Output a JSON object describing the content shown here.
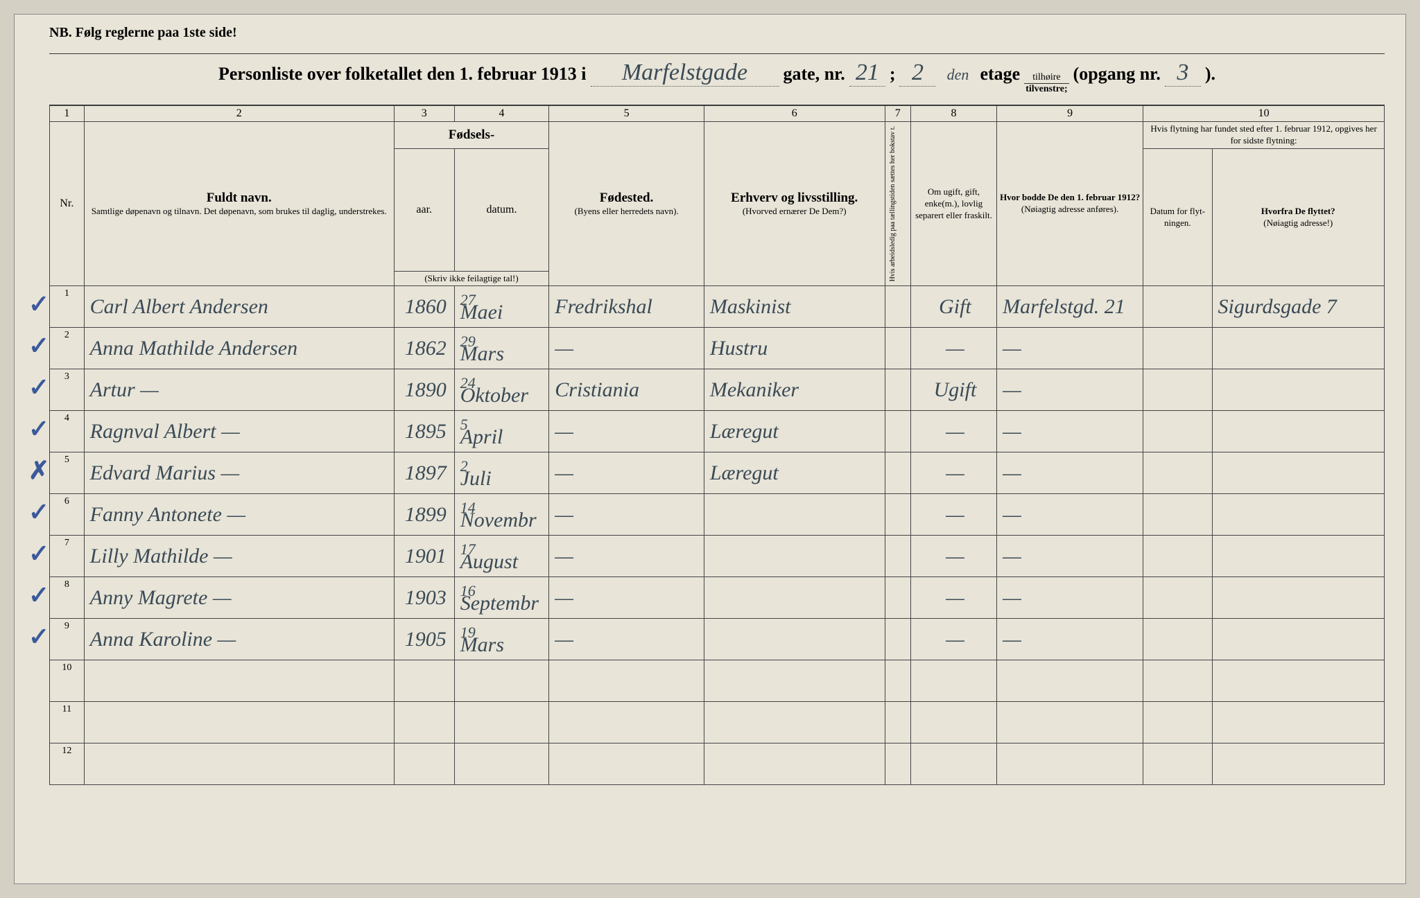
{
  "nb": "NB.  Følg reglerne paa 1ste side!",
  "header": {
    "prefix": "Personliste over folketallet den 1. februar 1913 i",
    "street": "Marfelstgade",
    "gate_nr_label": "gate, nr.",
    "gate_nr": "21",
    "semicolon": ";",
    "etage_nr": "2",
    "etage_sup": "den",
    "etage_label": "etage",
    "side_top": "tilhøire",
    "side_bottom": "tilvenstre;",
    "opgang_label": "(opgang nr.",
    "opgang_nr": "3",
    "close": ")."
  },
  "cols": {
    "n1": "1",
    "n2": "2",
    "n3": "3",
    "n4": "4",
    "n5": "5",
    "n6": "6",
    "n7": "7",
    "n8": "8",
    "n9": "9",
    "n10": "10",
    "nr": "Nr.",
    "name_main": "Fuldt navn.",
    "name_sub": "Samtlige døpenavn og tilnavn. Det døpenavn, som brukes til daglig, understrekes.",
    "birth_main": "Fødsels-",
    "birth_year": "aar.",
    "birth_date": "datum.",
    "birth_note": "(Skriv ikke feilagtige tal!)",
    "birthplace_main": "Fødested.",
    "birthplace_sub": "(Byens eller herredets navn).",
    "occ_main": "Erhverv og livsstilling.",
    "occ_sub": "(Hvorved ernærer De Dem?)",
    "col7": "Hvis arbeidsledig paa tællingstiden sættes her bokstav t.",
    "col8_main": "Om ugift, gift, enke(m.), lovlig separert eller fraskilt.",
    "col9_main": "Hvor bodde De den 1. februar 1912?",
    "col9_sub": "(Nøiagtig adresse anføres).",
    "col10_top": "Hvis flytning har fundet sted efter 1. februar 1912, opgives her for sidste flytning:",
    "col10a": "Datum for flyt-ningen.",
    "col10b_main": "Hvorfra De flyttet?",
    "col10b_sub": "(Nøiagtig adresse!)"
  },
  "rows": [
    {
      "mark": "✓",
      "nr": "1",
      "name": "Carl Albert Andersen",
      "year": "1860",
      "day": "27",
      "month": "Maei",
      "birthplace": "Fredrikshal",
      "occ": "Maskinist",
      "status": "Gift",
      "addr1912": "Marfelstgd. 21",
      "from": "Sigurdsgade 7"
    },
    {
      "mark": "✓",
      "nr": "2",
      "name": "Anna Mathilde Andersen",
      "year": "1862",
      "day": "29",
      "month": "Mars",
      "birthplace": "—",
      "occ": "Hustru",
      "status": "—",
      "addr1912": "—",
      "from": ""
    },
    {
      "mark": "✓",
      "nr": "3",
      "name": "Artur          —",
      "year": "1890",
      "day": "24",
      "month": "Oktober",
      "birthplace": "Cristiania",
      "occ": "Mekaniker",
      "status": "Ugift",
      "addr1912": "—",
      "from": ""
    },
    {
      "mark": "✓",
      "nr": "4",
      "name": "Ragnval Albert  —",
      "year": "1895",
      "day": "5",
      "month": "April",
      "birthplace": "—",
      "occ": "Læregut",
      "status": "—",
      "addr1912": "—",
      "from": ""
    },
    {
      "mark": "✗",
      "nr": "5",
      "name": "Edvard Marius  —",
      "year": "1897",
      "day": "2",
      "month": "Juli",
      "birthplace": "—",
      "occ": "Læregut",
      "status": "—",
      "addr1912": "—",
      "from": ""
    },
    {
      "mark": "✓",
      "nr": "6",
      "name": "Fanny Antonete  —",
      "year": "1899",
      "day": "14",
      "month": "Novembr",
      "birthplace": "—",
      "occ": "",
      "status": "—",
      "addr1912": "—",
      "from": ""
    },
    {
      "mark": "✓",
      "nr": "7",
      "name": "Lilly Mathilde  —",
      "year": "1901",
      "day": "17",
      "month": "August",
      "birthplace": "—",
      "occ": "",
      "status": "—",
      "addr1912": "—",
      "from": ""
    },
    {
      "mark": "✓",
      "nr": "8",
      "name": "Anny Magrete  —",
      "year": "1903",
      "day": "16",
      "month": "Septembr",
      "birthplace": "—",
      "occ": "",
      "status": "—",
      "addr1912": "—",
      "from": ""
    },
    {
      "mark": "✓",
      "nr": "9",
      "name": "Anna Karoline  —",
      "year": "1905",
      "day": "19",
      "month": "Mars",
      "birthplace": "—",
      "occ": "",
      "status": "—",
      "addr1912": "—",
      "from": ""
    },
    {
      "mark": "",
      "nr": "10",
      "name": "",
      "year": "",
      "day": "",
      "month": "",
      "birthplace": "",
      "occ": "",
      "status": "",
      "addr1912": "",
      "from": ""
    },
    {
      "mark": "",
      "nr": "11",
      "name": "",
      "year": "",
      "day": "",
      "month": "",
      "birthplace": "",
      "occ": "",
      "status": "",
      "addr1912": "",
      "from": ""
    },
    {
      "mark": "",
      "nr": "12",
      "name": "",
      "year": "",
      "day": "",
      "month": "",
      "birthplace": "",
      "occ": "",
      "status": "",
      "addr1912": "",
      "from": ""
    }
  ]
}
